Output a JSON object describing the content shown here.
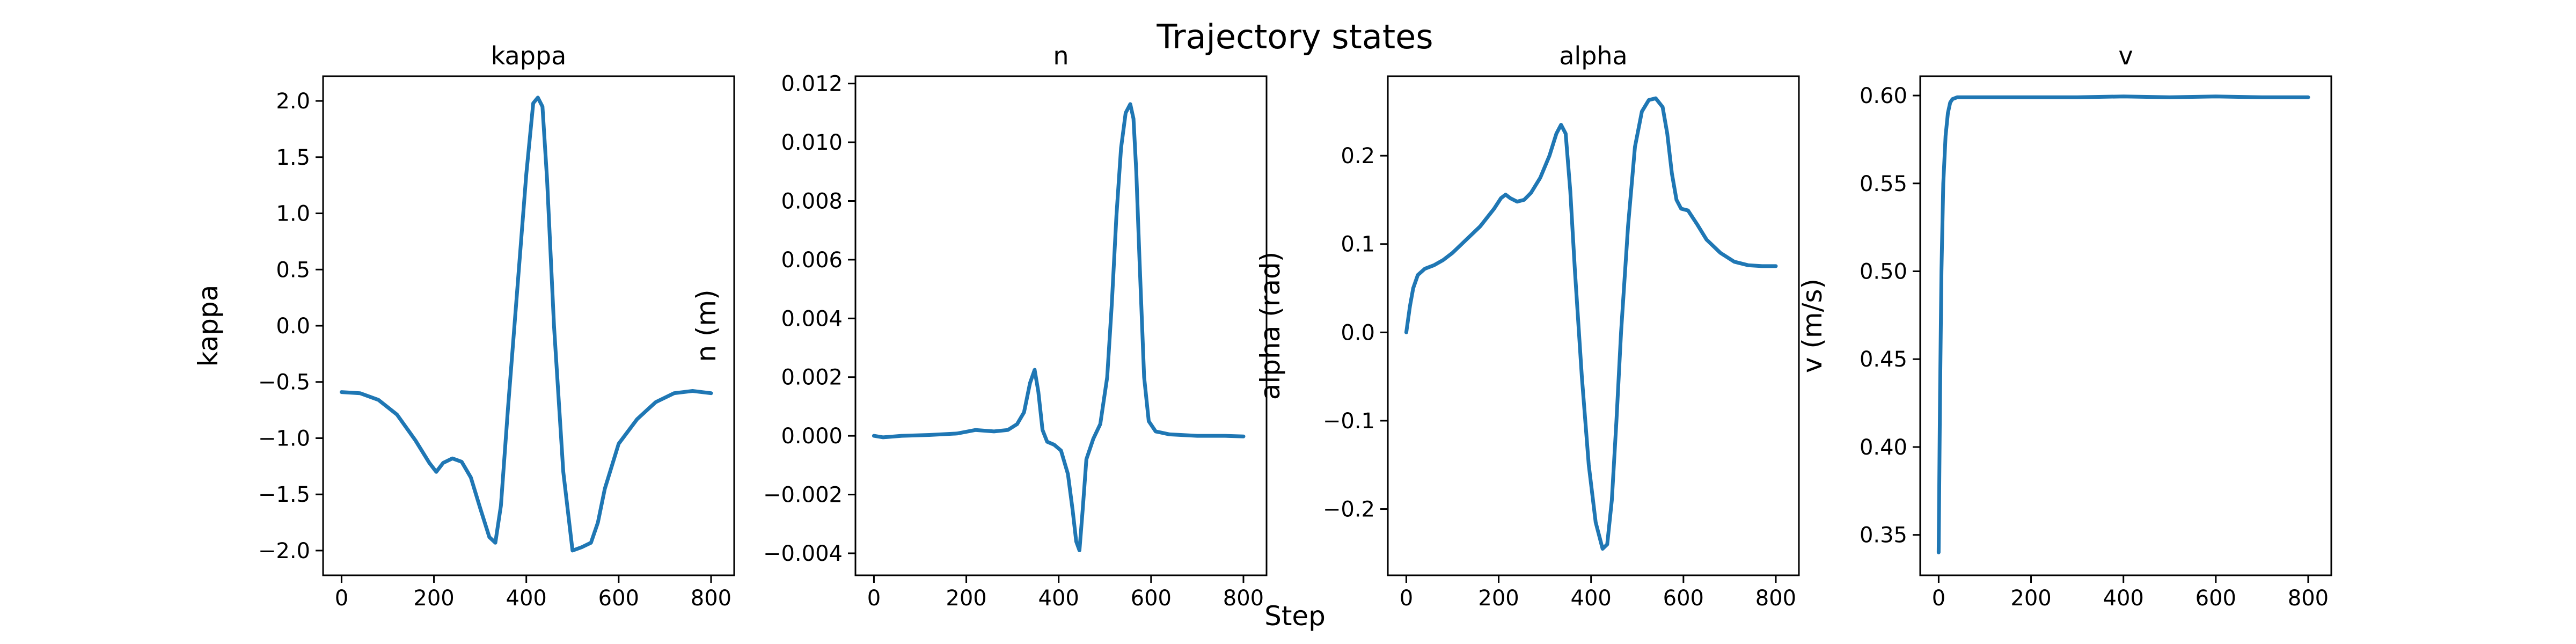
{
  "figure": {
    "suptitle": "Trajectory states",
    "supxlabel": "Step"
  },
  "colors": {
    "line": "#1f77b4",
    "axes": "#000000",
    "background": "#ffffff"
  },
  "chart_data": [
    {
      "type": "line",
      "title": "kappa",
      "xlabel": "",
      "ylabel": "kappa",
      "xlim": [
        -40,
        850
      ],
      "ylim": [
        -2.22,
        2.22
      ],
      "xticks": [
        0,
        200,
        400,
        600,
        800
      ],
      "xtick_labels": [
        "0",
        "200",
        "400",
        "600",
        "800"
      ],
      "yticks": [
        -2.0,
        -1.5,
        -1.0,
        -0.5,
        0.0,
        0.5,
        1.0,
        1.5,
        2.0
      ],
      "ytick_labels": [
        "−2.0",
        "−1.5",
        "−1.0",
        "−0.5",
        "0.0",
        "0.5",
        "1.0",
        "1.5",
        "2.0"
      ],
      "grid": false,
      "x": [
        0,
        40,
        80,
        120,
        160,
        190,
        205,
        220,
        240,
        260,
        280,
        300,
        320,
        333,
        345,
        360,
        380,
        400,
        415,
        425,
        435,
        445,
        460,
        480,
        500,
        520,
        540,
        555,
        570,
        600,
        640,
        680,
        720,
        760,
        800
      ],
      "y": [
        -0.59,
        -0.6,
        -0.66,
        -0.79,
        -1.02,
        -1.22,
        -1.3,
        -1.22,
        -1.18,
        -1.21,
        -1.35,
        -1.62,
        -1.88,
        -1.93,
        -1.6,
        -0.75,
        0.3,
        1.35,
        1.98,
        2.03,
        1.95,
        1.3,
        0.0,
        -1.3,
        -2.0,
        -1.97,
        -1.93,
        -1.75,
        -1.45,
        -1.05,
        -0.83,
        -0.68,
        -0.6,
        -0.58,
        -0.6
      ]
    },
    {
      "type": "line",
      "title": "n",
      "xlabel": "",
      "ylabel": "n (m)",
      "xlim": [
        -40,
        850
      ],
      "ylim": [
        -0.00475,
        0.01225
      ],
      "xticks": [
        0,
        200,
        400,
        600,
        800
      ],
      "xtick_labels": [
        "0",
        "200",
        "400",
        "600",
        "800"
      ],
      "yticks": [
        -0.004,
        -0.002,
        0.0,
        0.002,
        0.004,
        0.006,
        0.008,
        0.01,
        0.012
      ],
      "ytick_labels": [
        "−0.004",
        "−0.002",
        "0.000",
        "0.002",
        "0.004",
        "0.006",
        "0.008",
        "0.010",
        "0.012"
      ],
      "grid": false,
      "x": [
        0,
        20,
        60,
        120,
        180,
        220,
        260,
        290,
        310,
        325,
        338,
        348,
        356,
        365,
        375,
        390,
        405,
        420,
        430,
        438,
        445,
        452,
        460,
        475,
        490,
        505,
        515,
        525,
        535,
        545,
        555,
        562,
        568,
        575,
        585,
        595,
        610,
        640,
        700,
        760,
        800
      ],
      "y": [
        0.0,
        -5e-05,
        0.0,
        3e-05,
        8e-05,
        0.0002,
        0.00015,
        0.0002,
        0.0004,
        0.0008,
        0.0018,
        0.00225,
        0.0015,
        0.0002,
        -0.0002,
        -0.0003,
        -0.0005,
        -0.0013,
        -0.0025,
        -0.0036,
        -0.0039,
        -0.0025,
        -0.0008,
        -0.0001,
        0.0004,
        0.002,
        0.0045,
        0.0075,
        0.0098,
        0.011,
        0.0113,
        0.0108,
        0.009,
        0.006,
        0.002,
        0.0005,
        0.00015,
        5e-05,
        0.0,
        0.0,
        -2e-05
      ]
    },
    {
      "type": "line",
      "title": "alpha",
      "xlabel": "",
      "ylabel": "alpha (rad)",
      "xlim": [
        -40,
        850
      ],
      "ylim": [
        -0.275,
        0.29
      ],
      "xticks": [
        0,
        200,
        400,
        600,
        800
      ],
      "xtick_labels": [
        "0",
        "200",
        "400",
        "600",
        "800"
      ],
      "yticks": [
        -0.2,
        -0.1,
        0.0,
        0.1,
        0.2
      ],
      "ytick_labels": [
        "−0.2",
        "−0.1",
        "0.0",
        "0.1",
        "0.2"
      ],
      "grid": false,
      "x": [
        0,
        8,
        15,
        25,
        40,
        60,
        80,
        100,
        130,
        160,
        190,
        205,
        215,
        225,
        240,
        255,
        270,
        290,
        310,
        325,
        335,
        345,
        355,
        365,
        380,
        395,
        410,
        425,
        435,
        445,
        455,
        465,
        480,
        495,
        510,
        525,
        540,
        555,
        565,
        575,
        585,
        595,
        610,
        630,
        650,
        680,
        710,
        740,
        770,
        800
      ],
      "y": [
        0.0,
        0.03,
        0.05,
        0.065,
        0.072,
        0.076,
        0.082,
        0.09,
        0.105,
        0.12,
        0.14,
        0.152,
        0.156,
        0.152,
        0.148,
        0.15,
        0.158,
        0.175,
        0.2,
        0.225,
        0.235,
        0.225,
        0.16,
        0.07,
        -0.05,
        -0.15,
        -0.215,
        -0.245,
        -0.24,
        -0.19,
        -0.1,
        0.0,
        0.12,
        0.21,
        0.25,
        0.263,
        0.265,
        0.255,
        0.225,
        0.18,
        0.15,
        0.14,
        0.138,
        0.122,
        0.105,
        0.09,
        0.08,
        0.076,
        0.075,
        0.075
      ]
    },
    {
      "type": "line",
      "title": "v",
      "xlabel": "",
      "ylabel": "v (m/s)",
      "xlim": [
        -40,
        850
      ],
      "ylim": [
        0.327,
        0.611
      ],
      "xticks": [
        0,
        200,
        400,
        600,
        800
      ],
      "xtick_labels": [
        "0",
        "200",
        "400",
        "600",
        "800"
      ],
      "yticks": [
        0.35,
        0.4,
        0.45,
        0.5,
        0.55,
        0.6
      ],
      "ytick_labels": [
        "0.35",
        "0.40",
        "0.45",
        "0.50",
        "0.55",
        "0.60"
      ],
      "grid": false,
      "x": [
        0,
        3,
        6,
        10,
        15,
        20,
        25,
        30,
        40,
        60,
        100,
        200,
        300,
        400,
        500,
        600,
        700,
        800
      ],
      "y": [
        0.34,
        0.43,
        0.5,
        0.55,
        0.577,
        0.59,
        0.596,
        0.598,
        0.599,
        0.599,
        0.599,
        0.599,
        0.599,
        0.5995,
        0.599,
        0.5995,
        0.599,
        0.599
      ]
    }
  ]
}
